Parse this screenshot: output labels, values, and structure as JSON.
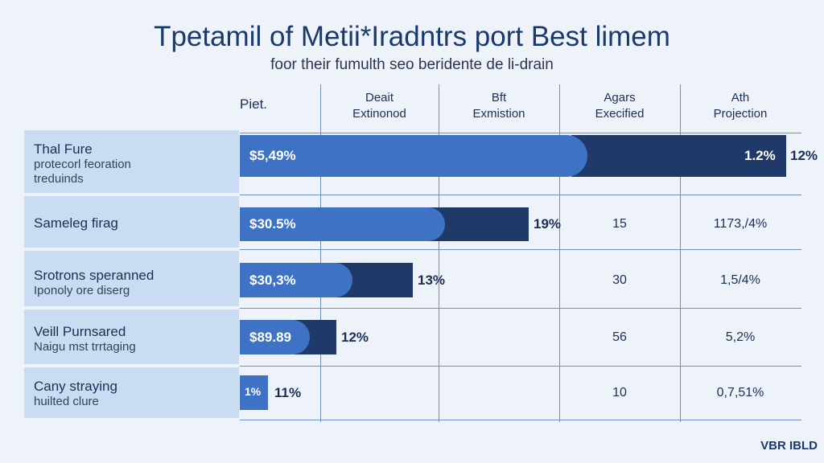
{
  "header": {
    "title": "Tpetamil of Metii*Iradntrs port Best limem",
    "subtitle": "foor their fumulth seo beridente de li-drain"
  },
  "columns": [
    "Piet.",
    "Deait\nExtinonod",
    "Bft\nExmistion",
    "Agars\nExecified",
    "Ath\nProjection"
  ],
  "rows": [
    {
      "label": "Thal Fure",
      "sublabel": "protecorl feoration\ntreduinds",
      "bar_label": "$5,49%",
      "dark_label": "1.2%",
      "outside_label": "12%"
    },
    {
      "label": "Sameleg firag",
      "bar_label": "$30.5%",
      "outside_label": "19%",
      "col3": "15",
      "col4": "1173,/4%"
    },
    {
      "label": "Srotrons speranned",
      "sublabel": "Iponoly ore diserg",
      "bar_label": "$30,3%",
      "outside_label": "13%",
      "col3": "30",
      "col4": "1,5/4%"
    },
    {
      "label": "Veill Purnsared",
      "sublabel": "Naigu mst trrtaging",
      "bar_label": "$89.89",
      "outside_label": "12%",
      "col3": "56",
      "col4": "5,2%"
    },
    {
      "label": "Cany straying",
      "sublabel": "huilted clure",
      "bar_label": "1%",
      "outside_label": "11%",
      "col3": "10",
      "col4": "0,7,51%"
    }
  ],
  "footer": {
    "logo": "VBR IBLD"
  }
}
